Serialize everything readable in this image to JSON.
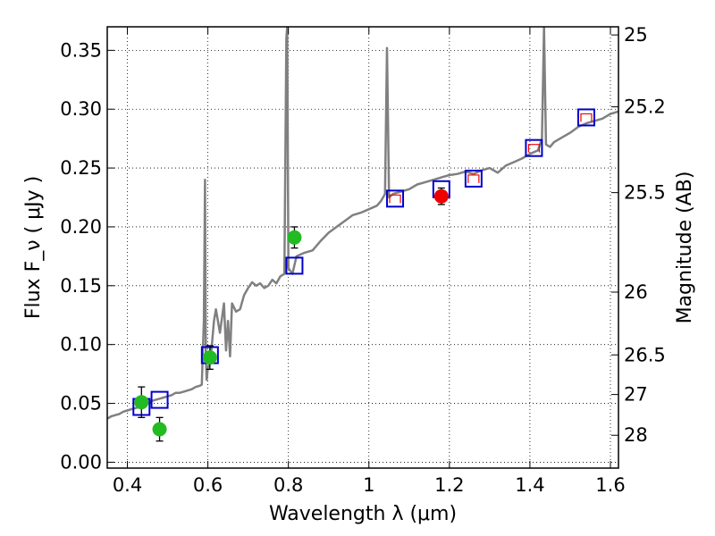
{
  "chart_data": {
    "type": "scatter",
    "xlabel": "Wavelength  λ (μm)",
    "ylabel": "Flux  F_ν  ( μJy )",
    "y2label": "Magnitude (AB)",
    "xlim": [
      0.35,
      1.62
    ],
    "ylim": [
      -0.005,
      0.37
    ],
    "grid": true,
    "x_ticks": [
      0.4,
      0.6,
      0.8,
      1.0,
      1.2,
      1.4,
      1.6
    ],
    "x_tick_labels": [
      "0.4",
      "0.6",
      "0.8",
      "1",
      "1.2",
      "1.4",
      "1.6"
    ],
    "y_ticks": [
      0.0,
      0.05,
      0.1,
      0.15,
      0.2,
      0.25,
      0.3,
      0.35
    ],
    "y_tick_labels": [
      "0.00",
      "0.05",
      "0.10",
      "0.15",
      "0.20",
      "0.25",
      "0.30",
      "0.35"
    ],
    "y2_ticks": [
      25,
      25.2,
      25.5,
      26,
      26.5,
      27,
      28
    ],
    "y2_tick_labels": [
      "25",
      "25.2",
      "25.5",
      "26",
      "26.5",
      "27",
      "28"
    ],
    "colors": {
      "model_spectrum": "#808080",
      "model_photometry": "#0000cc",
      "green_points": "#22bb22",
      "red_points": "#ee0000",
      "errorbar": "#000000"
    },
    "series": [
      {
        "kind": "line",
        "color": "#808080",
        "x": [
          0.35,
          0.36,
          0.37,
          0.38,
          0.39,
          0.4,
          0.41,
          0.42,
          0.43,
          0.44,
          0.45,
          0.46,
          0.47,
          0.48,
          0.49,
          0.5,
          0.51,
          0.52,
          0.53,
          0.54,
          0.55,
          0.56,
          0.57,
          0.58,
          0.585,
          0.59,
          0.593,
          0.595,
          0.597,
          0.6,
          0.605,
          0.61,
          0.615,
          0.62,
          0.63,
          0.64,
          0.645,
          0.65,
          0.655,
          0.66,
          0.67,
          0.68,
          0.69,
          0.7,
          0.71,
          0.72,
          0.73,
          0.74,
          0.75,
          0.76,
          0.77,
          0.78,
          0.79,
          0.795,
          0.797,
          0.8,
          0.81,
          0.82,
          0.84,
          0.86,
          0.88,
          0.9,
          0.92,
          0.94,
          0.96,
          0.98,
          1.0,
          1.02,
          1.03,
          1.04,
          1.045,
          1.05,
          1.06,
          1.08,
          1.1,
          1.12,
          1.14,
          1.16,
          1.18,
          1.2,
          1.22,
          1.24,
          1.26,
          1.28,
          1.3,
          1.32,
          1.34,
          1.36,
          1.38,
          1.4,
          1.42,
          1.43,
          1.435,
          1.44,
          1.45,
          1.46,
          1.48,
          1.5,
          1.52,
          1.54,
          1.56,
          1.58,
          1.6,
          1.62
        ],
        "y": [
          0.037,
          0.039,
          0.04,
          0.041,
          0.043,
          0.044,
          0.045,
          0.046,
          0.047,
          0.049,
          0.05,
          0.052,
          0.053,
          0.054,
          0.055,
          0.056,
          0.057,
          0.059,
          0.059,
          0.06,
          0.061,
          0.062,
          0.064,
          0.065,
          0.066,
          0.12,
          0.24,
          0.09,
          0.07,
          0.08,
          0.085,
          0.1,
          0.12,
          0.13,
          0.11,
          0.135,
          0.095,
          0.12,
          0.09,
          0.135,
          0.128,
          0.13,
          0.142,
          0.148,
          0.153,
          0.15,
          0.152,
          0.148,
          0.15,
          0.155,
          0.152,
          0.158,
          0.16,
          0.36,
          0.37,
          0.165,
          0.16,
          0.175,
          0.178,
          0.18,
          0.188,
          0.195,
          0.2,
          0.205,
          0.21,
          0.212,
          0.215,
          0.218,
          0.222,
          0.228,
          0.352,
          0.225,
          0.228,
          0.23,
          0.232,
          0.236,
          0.238,
          0.24,
          0.242,
          0.244,
          0.245,
          0.247,
          0.245,
          0.248,
          0.25,
          0.246,
          0.252,
          0.255,
          0.258,
          0.262,
          0.265,
          0.275,
          0.37,
          0.27,
          0.268,
          0.272,
          0.276,
          0.28,
          0.285,
          0.288,
          0.29,
          0.292,
          0.296,
          0.298
        ]
      },
      {
        "kind": "open_square",
        "color": "#0000cc",
        "x": [
          0.435,
          0.48,
          0.605,
          0.815,
          1.065,
          1.18,
          1.26,
          1.41,
          1.54
        ],
        "y": [
          0.047,
          0.053,
          0.091,
          0.167,
          0.224,
          0.232,
          0.241,
          0.267,
          0.293
        ]
      },
      {
        "kind": "filled_circle",
        "color": "#22bb22",
        "x": [
          0.435,
          0.48,
          0.605,
          0.815
        ],
        "y": [
          0.051,
          0.028,
          0.089,
          0.191
        ],
        "yerr": [
          0.013,
          0.01,
          0.01,
          0.009
        ]
      },
      {
        "kind": "filled_circle",
        "color": "#ee0000",
        "x": [
          1.18
        ],
        "y": [
          0.226
        ],
        "yerr": [
          0.007
        ]
      },
      {
        "kind": "step",
        "color": "#ee0000",
        "x": [
          1.065,
          1.26,
          1.41,
          1.54
        ],
        "y": [
          0.224,
          0.241,
          0.267,
          0.293
        ]
      }
    ]
  }
}
